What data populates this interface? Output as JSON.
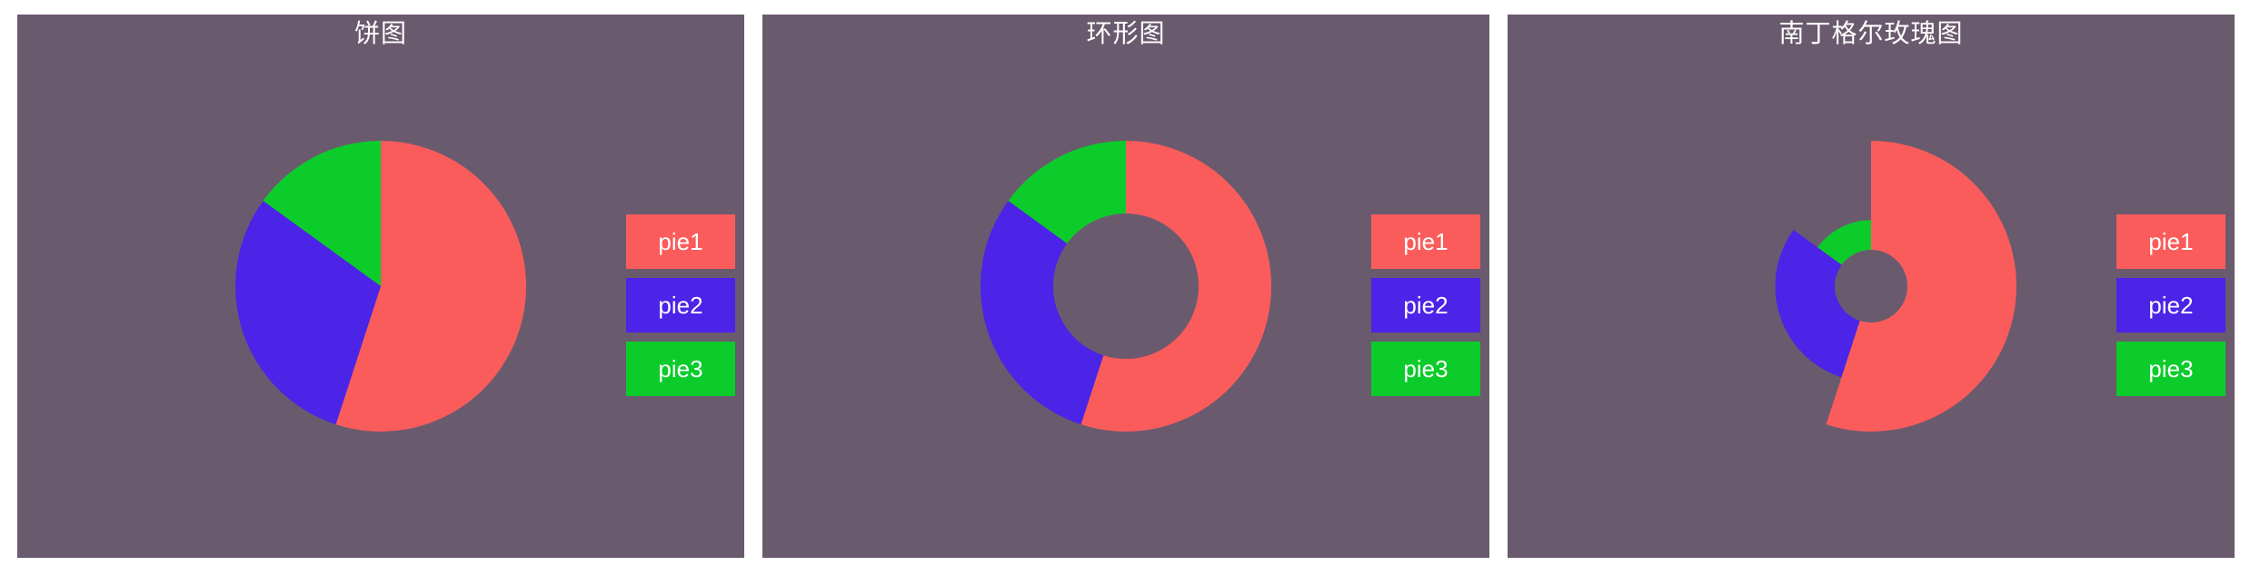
{
  "chart_data": [
    {
      "type": "pie",
      "title": "饼图",
      "categories": [
        "pie1",
        "pie2",
        "pie3"
      ],
      "values": [
        55,
        30,
        15
      ],
      "colors": [
        "#fa5c5c",
        "#4b24e8",
        "#0ccc2b"
      ],
      "legend_position": "right"
    },
    {
      "type": "pie",
      "variant": "donut",
      "title": "环形图",
      "categories": [
        "pie1",
        "pie2",
        "pie3"
      ],
      "values": [
        55,
        30,
        15
      ],
      "colors": [
        "#fa5c5c",
        "#4b24e8",
        "#0ccc2b"
      ],
      "legend_position": "right"
    },
    {
      "type": "pie",
      "variant": "nightingale-rose",
      "title": "南丁格尔玫瑰图",
      "categories": [
        "pie1",
        "pie2",
        "pie3"
      ],
      "values": [
        55,
        30,
        15
      ],
      "colors": [
        "#fa5c5c",
        "#4b24e8",
        "#0ccc2b"
      ],
      "legend_position": "right"
    }
  ],
  "panel_background": "#6a5a6e"
}
